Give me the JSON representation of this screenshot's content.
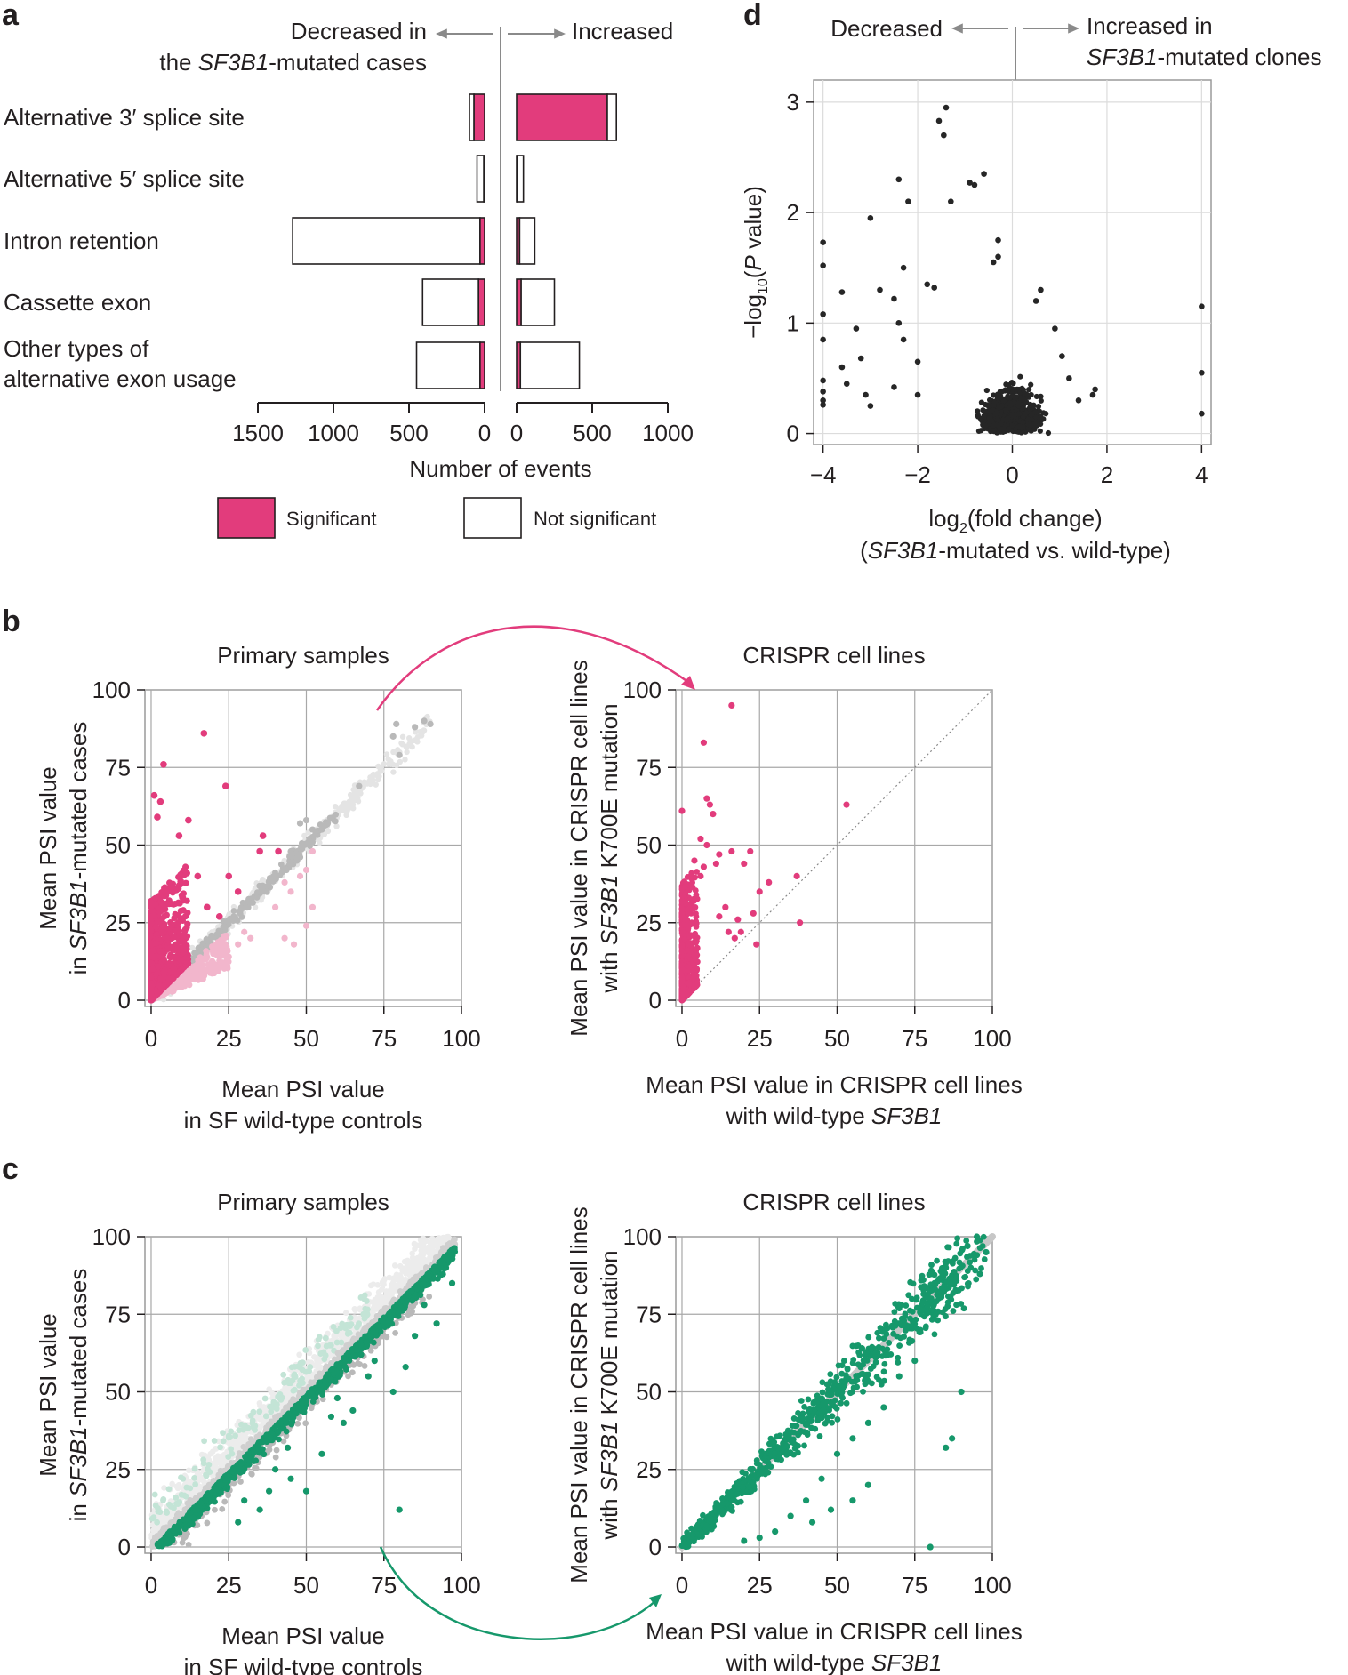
{
  "colors": {
    "significant": "#e23c7c",
    "not_significant": "#ffffff",
    "gray_points": "#b9b9b9",
    "light_pink": "#f2b6cc",
    "green": "#16986b",
    "light_green": "#c3e4d6",
    "volcano_points": "#262626",
    "diagonal_gray": "#c7c7c7"
  },
  "panels": {
    "a": "a",
    "b": "b",
    "c": "c",
    "d": "d"
  },
  "chart_data": [
    {
      "id": "a",
      "type": "bar",
      "orientation": "horizontal",
      "header_left": [
        "Decreased in",
        "the ",
        "SF3B1",
        "-mutated cases"
      ],
      "header_right": "Increased",
      "categories": [
        [
          "Alternative 3′ splice site"
        ],
        [
          "Alternative 5′ splice site"
        ],
        [
          "Intron retention"
        ],
        [
          "Cassette exon"
        ],
        [
          "Other types of",
          "alternative exon usage"
        ]
      ],
      "series": [
        {
          "name": "Significant",
          "decreased": [
            70,
            5,
            30,
            40,
            30
          ],
          "increased": [
            600,
            5,
            20,
            30,
            25
          ]
        },
        {
          "name": "Not significant",
          "decreased": [
            30,
            45,
            1240,
            370,
            420
          ],
          "increased": [
            60,
            40,
            100,
            220,
            390
          ]
        }
      ],
      "xlabel": "Number of events",
      "xlim": [
        1500,
        1000
      ],
      "ticks_left": [
        "1500",
        "1000",
        "500",
        "0"
      ],
      "ticks_right": [
        "0",
        "500",
        "1000"
      ],
      "legend": [
        "Significant",
        "Not significant"
      ]
    },
    {
      "id": "d",
      "type": "scatter",
      "header_left": "Decreased",
      "header_right": [
        "Increased in",
        "SF3B1",
        "-mutated clones"
      ],
      "xlabel": [
        "log",
        "2",
        "(fold change)"
      ],
      "xlabel2": [
        "(",
        "SF3B1",
        "-mutated vs. wild-type)"
      ],
      "ylabel": [
        "−log",
        "10",
        "(",
        "P",
        " value)"
      ],
      "xlim": [
        -4.2,
        4.2
      ],
      "ylim": [
        -0.1,
        3.2
      ],
      "xticks": [
        "−4",
        "−2",
        "0",
        "2",
        "4"
      ],
      "yticks": [
        "0",
        "1",
        "2",
        "3"
      ],
      "points": [
        [
          -1.4,
          2.95
        ],
        [
          -1.55,
          2.83
        ],
        [
          -1.45,
          2.7
        ],
        [
          -2.4,
          2.3
        ],
        [
          -0.6,
          2.35
        ],
        [
          -0.9,
          2.27
        ],
        [
          -0.8,
          2.25
        ],
        [
          -3.0,
          1.95
        ],
        [
          -2.2,
          2.1
        ],
        [
          -1.3,
          2.1
        ],
        [
          -4.0,
          1.73
        ],
        [
          -0.3,
          1.75
        ],
        [
          -0.3,
          1.6
        ],
        [
          -0.4,
          1.55
        ],
        [
          -4.0,
          1.52
        ],
        [
          -2.3,
          1.5
        ],
        [
          -3.6,
          1.28
        ],
        [
          -2.8,
          1.3
        ],
        [
          -2.5,
          1.22
        ],
        [
          -1.8,
          1.35
        ],
        [
          -1.65,
          1.32
        ],
        [
          -4.0,
          1.08
        ],
        [
          -3.3,
          0.95
        ],
        [
          -2.4,
          1.0
        ],
        [
          -2.3,
          0.85
        ],
        [
          -4.0,
          0.85
        ],
        [
          -3.2,
          0.68
        ],
        [
          -2.0,
          0.65
        ],
        [
          -3.6,
          0.6
        ],
        [
          -3.1,
          0.35
        ],
        [
          -2.5,
          0.42
        ],
        [
          -4.0,
          0.48
        ],
        [
          -4.0,
          0.38
        ],
        [
          -4.0,
          0.3
        ],
        [
          -4.0,
          0.26
        ],
        [
          -3.0,
          0.25
        ],
        [
          -3.5,
          0.45
        ],
        [
          -2.0,
          0.35
        ],
        [
          4.0,
          1.15
        ],
        [
          4.0,
          0.55
        ],
        [
          4.0,
          0.18
        ],
        [
          1.7,
          0.35
        ],
        [
          1.75,
          0.4
        ],
        [
          1.4,
          0.3
        ],
        [
          1.2,
          0.5
        ],
        [
          1.05,
          0.7
        ],
        [
          0.9,
          0.95
        ],
        [
          0.5,
          1.2
        ],
        [
          0.6,
          1.3
        ]
      ],
      "cloud_count": 700
    },
    {
      "id": "b-left",
      "type": "scatter",
      "title": "Primary samples",
      "xlabel": [
        "Mean PSI value",
        "in SF wild-type controls"
      ],
      "ylabel": [
        "Mean PSI value",
        "in ",
        "SF3B1",
        "-mutated cases"
      ],
      "xlim": [
        -2,
        100
      ],
      "ylim": [
        -2,
        100
      ],
      "ticks": [
        "0",
        "25",
        "50",
        "75",
        "100"
      ],
      "notable_points": [
        [
          17,
          86
        ],
        [
          4,
          76
        ],
        [
          3,
          64
        ],
        [
          1,
          66
        ],
        [
          24,
          69
        ],
        [
          9,
          53
        ],
        [
          12,
          58
        ],
        [
          2,
          59
        ],
        [
          35,
          48
        ],
        [
          41,
          48
        ],
        [
          36,
          53
        ],
        [
          25,
          40
        ],
        [
          28,
          35
        ],
        [
          15,
          40
        ],
        [
          22,
          27
        ],
        [
          18,
          30
        ]
      ],
      "gray_points": [
        [
          78,
          85
        ],
        [
          79,
          89
        ],
        [
          85,
          88
        ],
        [
          88,
          90
        ],
        [
          90,
          89
        ],
        [
          80,
          79
        ],
        [
          67,
          69
        ],
        [
          48,
          57
        ],
        [
          50,
          58
        ],
        [
          52,
          55
        ],
        [
          51,
          52
        ],
        [
          47,
          45
        ],
        [
          40,
          40
        ],
        [
          45,
          48
        ],
        [
          52,
          51
        ],
        [
          55,
          55
        ]
      ],
      "pink_points": [
        [
          20,
          15
        ],
        [
          22,
          18
        ],
        [
          30,
          22
        ],
        [
          32,
          20
        ],
        [
          28,
          18
        ],
        [
          25,
          14
        ],
        [
          15,
          8
        ],
        [
          19,
          10
        ],
        [
          40,
          30
        ],
        [
          45,
          35
        ],
        [
          50,
          42
        ],
        [
          52,
          48
        ],
        [
          43,
          38
        ],
        [
          48,
          40
        ],
        [
          52,
          30
        ],
        [
          43,
          20
        ],
        [
          46,
          18
        ],
        [
          50,
          24
        ]
      ]
    },
    {
      "id": "b-right",
      "type": "scatter",
      "title": "CRISPR cell lines",
      "xlabel": [
        "Mean PSI value in CRISPR cell lines",
        "with wild-type ",
        "SF3B1"
      ],
      "ylabel": [
        "Mean PSI value in CRISPR cell lines",
        "with ",
        "SF3B1",
        " K700E mutation"
      ],
      "xlim": [
        -2,
        100
      ],
      "ylim": [
        -2,
        100
      ],
      "ticks": [
        "0",
        "25",
        "50",
        "75",
        "100"
      ],
      "notable_points": [
        [
          16,
          95
        ],
        [
          7,
          83
        ],
        [
          8,
          65
        ],
        [
          9,
          63
        ],
        [
          10,
          60
        ],
        [
          0,
          61
        ],
        [
          53,
          63
        ],
        [
          37,
          40
        ],
        [
          28,
          38
        ],
        [
          25,
          35
        ],
        [
          23,
          28
        ],
        [
          38,
          25
        ],
        [
          22,
          48
        ],
        [
          20,
          44
        ],
        [
          16,
          48
        ],
        [
          12,
          47
        ],
        [
          14,
          30
        ],
        [
          18,
          26
        ],
        [
          7,
          43
        ],
        [
          6,
          40
        ],
        [
          11,
          44
        ],
        [
          19,
          22
        ],
        [
          24,
          18
        ],
        [
          15,
          22
        ],
        [
          12,
          27
        ],
        [
          17,
          20
        ],
        [
          6,
          52
        ],
        [
          8,
          50
        ],
        [
          4,
          45
        ]
      ]
    },
    {
      "id": "c-left",
      "type": "scatter",
      "title": "Primary samples",
      "xlabel": [
        "Mean PSI value",
        "in SF wild-type controls"
      ],
      "ylabel": [
        "Mean PSI value",
        "in ",
        "SF3B1",
        "-mutated cases"
      ],
      "xlim": [
        -2,
        100
      ],
      "ylim": [
        -2,
        100
      ],
      "ticks": [
        "0",
        "25",
        "50",
        "75",
        "100"
      ],
      "notable_points": [
        [
          80,
          12
        ],
        [
          70,
          55
        ],
        [
          78,
          50
        ],
        [
          82,
          58
        ],
        [
          92,
          72
        ],
        [
          95,
          90
        ],
        [
          97,
          85
        ],
        [
          62,
          40
        ],
        [
          65,
          44
        ],
        [
          55,
          30
        ],
        [
          50,
          18
        ],
        [
          45,
          22
        ],
        [
          38,
          18
        ],
        [
          35,
          12
        ],
        [
          60,
          48
        ],
        [
          72,
          60
        ],
        [
          85,
          68
        ],
        [
          88,
          78
        ],
        [
          30,
          15
        ],
        [
          40,
          25
        ],
        [
          58,
          42
        ],
        [
          44,
          32
        ],
        [
          28,
          8
        ]
      ]
    },
    {
      "id": "c-right",
      "type": "scatter",
      "title": "CRISPR cell lines",
      "xlabel": [
        "Mean PSI value in CRISPR cell lines",
        "with wild-type ",
        "SF3B1"
      ],
      "ylabel": [
        "Mean PSI value in CRISPR cell lines",
        "with ",
        "SF3B1",
        " K700E mutation"
      ],
      "xlim": [
        -2,
        100
      ],
      "ylim": [
        -2,
        100
      ],
      "ticks": [
        "0",
        "25",
        "50",
        "75",
        "100"
      ],
      "notable_points": [
        [
          80,
          0
        ],
        [
          90,
          50
        ],
        [
          85,
          32
        ],
        [
          87,
          35
        ],
        [
          95,
          100
        ],
        [
          92,
          97
        ],
        [
          98,
          95
        ],
        [
          96,
          88
        ],
        [
          75,
          60
        ],
        [
          70,
          55
        ],
        [
          65,
          45
        ],
        [
          60,
          40
        ],
        [
          55,
          35
        ],
        [
          50,
          30
        ],
        [
          45,
          22
        ],
        [
          40,
          15
        ],
        [
          35,
          10
        ],
        [
          30,
          5
        ],
        [
          25,
          3
        ],
        [
          20,
          2
        ],
        [
          60,
          20
        ],
        [
          55,
          15
        ],
        [
          42,
          8
        ],
        [
          48,
          12
        ],
        [
          70,
          72
        ],
        [
          80,
          80
        ],
        [
          85,
          90
        ],
        [
          65,
          70
        ],
        [
          58,
          64
        ]
      ]
    }
  ]
}
